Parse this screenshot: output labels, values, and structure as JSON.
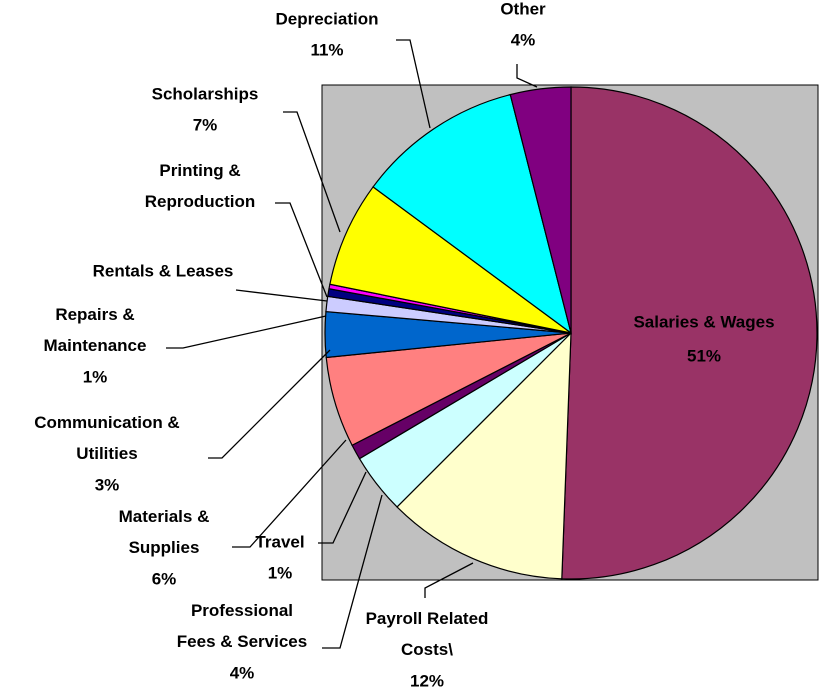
{
  "chart_data": {
    "type": "pie",
    "categories": [
      "Salaries & Wages",
      "Payroll Related Costs\\",
      "Professional Fees & Services",
      "Travel",
      "Materials & Supplies",
      "Communication & Utilities",
      "Repairs & Maintenance",
      "Rentals & Leases",
      "Printing & Reproduction",
      "Scholarships",
      "Depreciation",
      "Other"
    ],
    "values": [
      51,
      12,
      4,
      1,
      6,
      3,
      1,
      0.5,
      0.3,
      7,
      11,
      4
    ],
    "value_labels": [
      "51%",
      "12%",
      "4%",
      "1%",
      "6%",
      "3%",
      "1%",
      null,
      null,
      "7%",
      "11%",
      "4%"
    ],
    "colors": [
      "#993366",
      "#FFFFCC",
      "#CCFFFF",
      "#660066",
      "#FF8080",
      "#0066CC",
      "#CCCCFF",
      "#000080",
      "#FF00FF",
      "#FFFF00",
      "#00FFFF",
      "#800080"
    ]
  }
}
